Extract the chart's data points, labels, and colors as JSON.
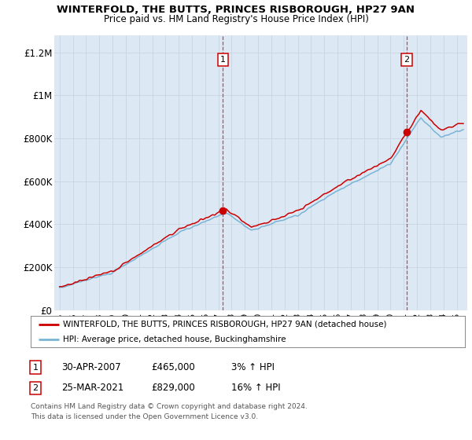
{
  "title": "WINTERFOLD, THE BUTTS, PRINCES RISBOROUGH, HP27 9AN",
  "subtitle": "Price paid vs. HM Land Registry's House Price Index (HPI)",
  "ylabel_ticks": [
    "£0",
    "£200K",
    "£400K",
    "£600K",
    "£800K",
    "£1M",
    "£1.2M"
  ],
  "ytick_values": [
    0,
    200000,
    400000,
    600000,
    800000,
    1000000,
    1200000
  ],
  "ylim": [
    0,
    1280000
  ],
  "xlim_start": 1994.6,
  "xlim_end": 2025.8,
  "property_color": "#cc0000",
  "hpi_color": "#7ab4d4",
  "shade_color": "#dce8f4",
  "point1_x": 2007.33,
  "point1_y": 465000,
  "point1_label": "1",
  "point1_date": "30-APR-2007",
  "point1_price": "£465,000",
  "point1_hpi": "3% ↑ HPI",
  "point2_x": 2021.23,
  "point2_y": 829000,
  "point2_label": "2",
  "point2_date": "25-MAR-2021",
  "point2_price": "£829,000",
  "point2_hpi": "16% ↑ HPI",
  "legend_line1": "WINTERFOLD, THE BUTTS, PRINCES RISBOROUGH, HP27 9AN (detached house)",
  "legend_line2": "HPI: Average price, detached house, Buckinghamshire",
  "footnote1": "Contains HM Land Registry data © Crown copyright and database right 2024.",
  "footnote2": "This data is licensed under the Open Government Licence v3.0.",
  "plot_bg_color": "#dce8f4",
  "background_color": "#ffffff",
  "grid_color": "#ffffff"
}
